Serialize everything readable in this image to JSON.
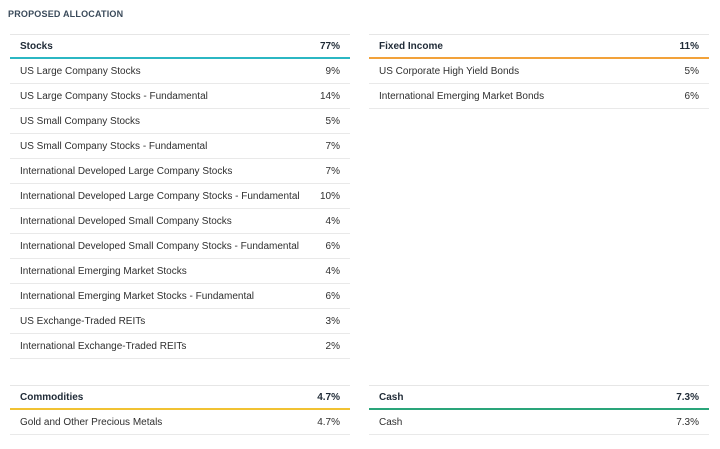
{
  "title": "PROPOSED ALLOCATION",
  "colors": {
    "stocks": "#2bb7c3",
    "fixed_income": "#f2a23a",
    "commodities": "#f1c232",
    "cash": "#2aa57a"
  },
  "stocks": {
    "label": "Stocks",
    "total": "77%",
    "items": [
      {
        "name": "US Large Company Stocks",
        "value": "9%"
      },
      {
        "name": "US Large Company Stocks - Fundamental",
        "value": "14%"
      },
      {
        "name": "US Small Company Stocks",
        "value": "5%"
      },
      {
        "name": "US Small Company Stocks - Fundamental",
        "value": "7%"
      },
      {
        "name": "International Developed Large Company Stocks",
        "value": "7%"
      },
      {
        "name": "International Developed Large Company Stocks - Fundamental",
        "value": "10%"
      },
      {
        "name": "International Developed Small Company Stocks",
        "value": "4%"
      },
      {
        "name": "International Developed Small Company Stocks - Fundamental",
        "value": "6%"
      },
      {
        "name": "International Emerging Market Stocks",
        "value": "4%"
      },
      {
        "name": "International Emerging Market Stocks - Fundamental",
        "value": "6%"
      },
      {
        "name": "US Exchange-Traded REITs",
        "value": "3%"
      },
      {
        "name": "International Exchange-Traded REITs",
        "value": "2%"
      }
    ]
  },
  "fixed_income": {
    "label": "Fixed Income",
    "total": "11%",
    "items": [
      {
        "name": "US Corporate High Yield Bonds",
        "value": "5%"
      },
      {
        "name": "International Emerging Market Bonds",
        "value": "6%"
      }
    ]
  },
  "commodities": {
    "label": "Commodities",
    "total": "4.7%",
    "items": [
      {
        "name": "Gold and Other Precious Metals",
        "value": "4.7%"
      }
    ]
  },
  "cash": {
    "label": "Cash",
    "total": "7.3%",
    "items": [
      {
        "name": "Cash",
        "value": "7.3%"
      }
    ]
  }
}
